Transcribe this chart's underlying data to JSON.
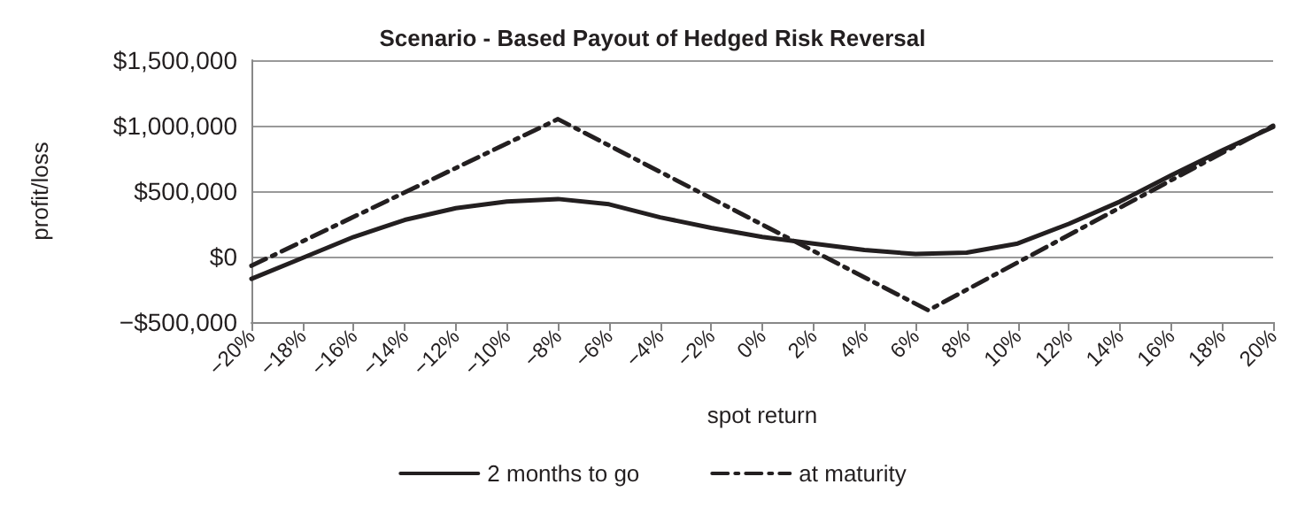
{
  "chart_data": {
    "type": "line",
    "title": "Scenario - Based Payout of Hedged Risk Reversal",
    "xlabel": "spot return",
    "ylabel": "profit/loss",
    "xlim": [
      -20,
      20
    ],
    "xticks": [
      {
        "value": -20,
        "label": "−20%"
      },
      {
        "value": -18,
        "label": "−18%"
      },
      {
        "value": -16,
        "label": "−16%"
      },
      {
        "value": -14,
        "label": "−14%"
      },
      {
        "value": -12,
        "label": "−12%"
      },
      {
        "value": -10,
        "label": "−10%"
      },
      {
        "value": -8,
        "label": "−8%"
      },
      {
        "value": -6,
        "label": "−6%"
      },
      {
        "value": -4,
        "label": "−4%"
      },
      {
        "value": -2,
        "label": "−2%"
      },
      {
        "value": 0,
        "label": "0%"
      },
      {
        "value": 2,
        "label": "2%"
      },
      {
        "value": 4,
        "label": "4%"
      },
      {
        "value": 6,
        "label": "6%"
      },
      {
        "value": 8,
        "label": "8%"
      },
      {
        "value": 10,
        "label": "10%"
      },
      {
        "value": 12,
        "label": "12%"
      },
      {
        "value": 14,
        "label": "14%"
      },
      {
        "value": 16,
        "label": "16%"
      },
      {
        "value": 18,
        "label": "18%"
      },
      {
        "value": 20,
        "label": "20%"
      }
    ],
    "ylim": [
      -500000,
      1500000
    ],
    "yticks": [
      {
        "value": -500000,
        "label": "−$500,000"
      },
      {
        "value": 0,
        "label": "$0"
      },
      {
        "value": 500000,
        "label": "$500,000"
      },
      {
        "value": 1000000,
        "label": "$1,000,000"
      },
      {
        "value": 1500000,
        "label": "$1,500,000"
      }
    ],
    "grid": "y",
    "legend": "bottom",
    "marker": "none",
    "series": [
      {
        "name": "2 months to go",
        "color": "#231f20",
        "line_style": "solid",
        "x": [
          -20,
          -18,
          -16,
          -14,
          -12,
          -10,
          -8,
          -6,
          -4,
          -2,
          0,
          2,
          4,
          6,
          8,
          10,
          12,
          14,
          16,
          18,
          20
        ],
        "values": [
          -170000,
          -10000,
          150000,
          280000,
          370000,
          420000,
          440000,
          400000,
          300000,
          220000,
          150000,
          100000,
          50000,
          20000,
          30000,
          100000,
          250000,
          420000,
          620000,
          810000,
          990000
        ]
      },
      {
        "name": "at maturity",
        "color": "#231f20",
        "line_style": "dashdot",
        "x": [
          -20,
          -8,
          6.5,
          20
        ],
        "values": [
          -70000,
          1050000,
          -410000,
          1000000
        ]
      }
    ]
  }
}
